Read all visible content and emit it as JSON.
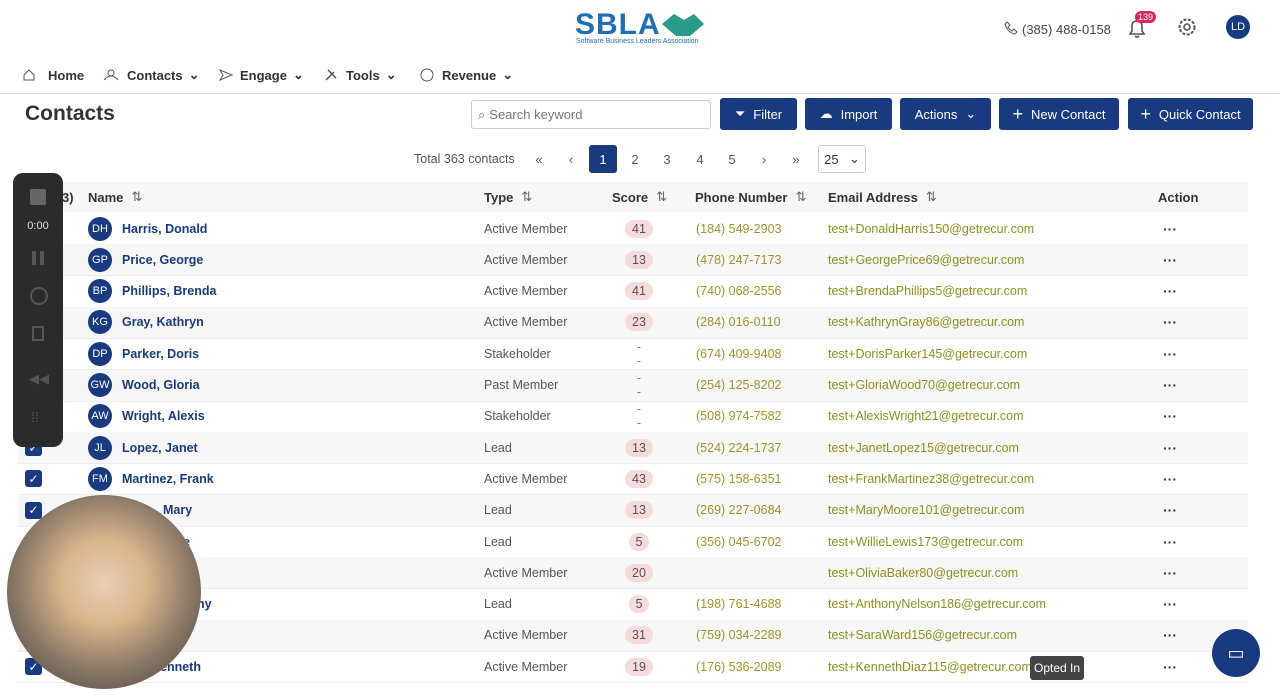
{
  "header": {
    "logo": "SBLA",
    "logo_tagline": "Software Business Leaders Association",
    "phone": "(385) 488-0158",
    "notification_count": "139",
    "avatar": "LD"
  },
  "nav": {
    "items": [
      "Home",
      "Contacts",
      "Engage",
      "Tools",
      "Revenue"
    ]
  },
  "toolbar": {
    "title": "Contacts",
    "search_placeholder": "Search keyword",
    "buttons": [
      "Filter",
      "Import",
      "Actions",
      "New Contact",
      "Quick Contact"
    ]
  },
  "pagination": {
    "total": "Total 363 contacts",
    "pages": [
      "1",
      "2",
      "3",
      "4",
      "5"
    ],
    "page_size": "25"
  },
  "recorder": {
    "time": "0:00"
  },
  "table": {
    "selected_count": "3)",
    "columns": [
      "Name",
      "Type",
      "Score",
      "Phone Number",
      "Email Address",
      "Action"
    ],
    "rows": [
      [
        "DH",
        "Harris, Donald",
        "Active Member",
        41,
        "(184) 549-2903",
        "test+DonaldHarris150@getrecur.com"
      ],
      [
        "GP",
        "Price, George",
        "Active Member",
        13,
        "(478) 247-7173",
        "test+GeorgePrice69@getrecur.com"
      ],
      [
        "BP",
        "Phillips, Brenda",
        "Active Member",
        41,
        "(740) 068-2556",
        "test+BrendaPhillips5@getrecur.com"
      ],
      [
        "KG",
        "Gray, Kathryn",
        "Active Member",
        23,
        "(284) 016-0110",
        "test+KathrynGray86@getrecur.com"
      ],
      [
        "DP",
        "Parker, Doris",
        "Stakeholder",
        "--",
        "(674) 409-9408",
        "test+DorisParker145@getrecur.com"
      ],
      [
        "GW",
        "Wood, Gloria",
        "Past Member",
        "--",
        "(254) 125-8202",
        "test+GloriaWood70@getrecur.com"
      ],
      [
        "AW",
        "Wright, Alexis",
        "Stakeholder",
        "--",
        "(508) 974-7582",
        "test+AlexisWright21@getrecur.com"
      ],
      [
        "JL",
        "Lopez, Janet",
        "Lead",
        13,
        "(524) 224-1737",
        "test+JanetLopez15@getrecur.com"
      ],
      [
        "FM",
        "Martinez, Frank",
        "Active Member",
        43,
        "(575) 158-6351",
        "test+FrankMartinez38@getrecur.com"
      ],
      [
        null,
        "Mary",
        "Lead",
        13,
        "(269) 227-0684",
        "test+MaryMoore101@getrecur.com"
      ],
      [
        null,
        "e",
        "Lead",
        5,
        "(356) 045-6702",
        "test+WillieLewis173@getrecur.com"
      ],
      [
        null,
        null,
        "Active Member",
        20,
        null,
        "test+OliviaBaker80@getrecur.com"
      ],
      [
        null,
        "ny",
        "Lead",
        5,
        "(198) 761-4688",
        "test+AnthonyNelson186@getrecur.com"
      ],
      [
        null,
        null,
        "Active Member",
        31,
        "(759) 034-2289",
        "test+SaraWard156@getrecur.com"
      ],
      [
        null,
        "enneth",
        "Active Member",
        19,
        "(176) 536-2089",
        "test+KennethDiaz115@getrecur.com"
      ]
    ]
  },
  "tooltip": "Opted In"
}
